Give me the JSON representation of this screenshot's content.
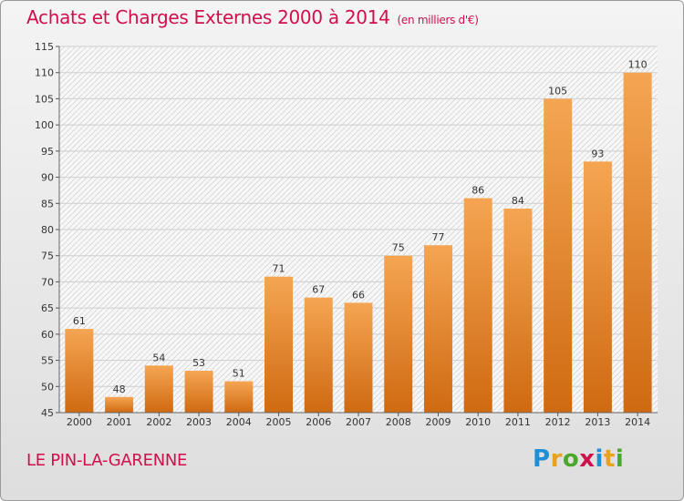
{
  "header": {
    "title": "Achats et Charges Externes 2000 à 2014",
    "unit": "(en milliers d'€)"
  },
  "footer": {
    "commune": "LE PIN-LA-GARENNE",
    "logo": {
      "letters": [
        "P",
        "r",
        "o",
        "x",
        "i",
        "t",
        "i"
      ],
      "colors": [
        "#1e8fd6",
        "#e8a31b",
        "#4ca82d",
        "#d0104c",
        "#1e8fd6",
        "#e8a31b",
        "#4ca82d"
      ]
    }
  },
  "colors": {
    "title": "#d0104c",
    "bar_top": "#f5a552",
    "bar_bottom": "#cf6a12",
    "grid": "#cfcfcf"
  },
  "chart_data": {
    "type": "bar",
    "title": "Achats et Charges Externes 2000 à 2014",
    "xlabel": "",
    "ylabel": "",
    "categories": [
      "2000",
      "2001",
      "2002",
      "2003",
      "2004",
      "2005",
      "2006",
      "2007",
      "2008",
      "2009",
      "2010",
      "2011",
      "2012",
      "2013",
      "2014"
    ],
    "values": [
      61,
      48,
      54,
      53,
      51,
      71,
      67,
      66,
      75,
      77,
      86,
      84,
      105,
      93,
      110
    ],
    "ylim": [
      45,
      115
    ],
    "yticks": [
      45,
      50,
      55,
      60,
      65,
      70,
      75,
      80,
      85,
      90,
      95,
      100,
      105,
      110,
      115
    ],
    "grid": true,
    "data_labels": true
  }
}
